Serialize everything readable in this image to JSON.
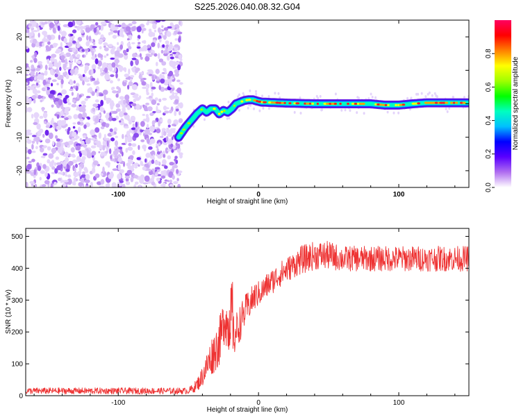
{
  "title": "S225.2026.040.08.32.G04",
  "chart_data": [
    {
      "type": "heatmap",
      "name": "spectrogram",
      "xlabel": "Height of straight line (km)",
      "ylabel": "Frequency (Hz)",
      "xlim": [
        -166,
        150
      ],
      "ylim": [
        -25,
        25
      ],
      "xticks": [
        -100,
        0,
        100
      ],
      "xtick_labels": [
        "-100",
        "0",
        "100"
      ],
      "yticks": [
        -20,
        -10,
        0,
        10,
        20
      ],
      "ytick_labels": [
        "-20",
        "-10",
        "0",
        "10",
        "20"
      ],
      "noise_region_x": [
        -166,
        -55
      ],
      "signal_track": {
        "x": [
          -57,
          -52,
          -48,
          -44,
          -40,
          -37,
          -34,
          -31,
          -28,
          -25,
          -22,
          -19,
          -16,
          -13,
          -10,
          -7,
          -4,
          -1,
          2,
          20,
          40,
          60,
          80,
          90,
          100,
          110,
          120,
          150
        ],
        "y": [
          -10,
          -7,
          -5,
          -3,
          -1.5,
          -2.5,
          -1.5,
          -1.5,
          -3,
          -2,
          -2.5,
          -1.5,
          0,
          0.5,
          1,
          1.2,
          1.2,
          0.8,
          0.5,
          0.2,
          0,
          0,
          0,
          -0.4,
          -0.4,
          0,
          0.3,
          0.3
        ]
      },
      "colorbar": {
        "label": "Normalized spectral amplitude",
        "range": [
          0,
          1
        ],
        "ticks": [
          0,
          0.2,
          0.4,
          0.6,
          0.8
        ],
        "tick_labels": [
          "0.0",
          "0.2",
          "0.4",
          "0.6",
          "0.8"
        ],
        "colors": [
          "#ffffff",
          "#b06ef0",
          "#5a00ff",
          "#0000ff",
          "#00c0ff",
          "#00ffc0",
          "#00ff00",
          "#a0ff00",
          "#ffff00",
          "#ff8000",
          "#ff0000",
          "#ff0060"
        ]
      }
    },
    {
      "type": "line",
      "name": "snr",
      "xlabel": "Height of straight line (km)",
      "ylabel": "SNR (10 * v/v)",
      "xlim": [
        -166,
        150
      ],
      "ylim": [
        0,
        525
      ],
      "xticks": [
        -100,
        0,
        100
      ],
      "xtick_labels": [
        "-100",
        "0",
        "100"
      ],
      "yticks": [
        0,
        100,
        200,
        300,
        400,
        500
      ],
      "ytick_labels": [
        "0",
        "100",
        "200",
        "300",
        "400",
        "500"
      ],
      "series": [
        {
          "name": "SNR",
          "color": "#ee3333",
          "envelope_x": [
            -166,
            -50,
            -46,
            -42,
            -38,
            -34,
            -30,
            -27,
            -24,
            -21,
            -18,
            -15,
            -12,
            -9,
            -6,
            -3,
            0,
            3,
            6,
            10,
            15,
            20,
            25,
            30,
            40,
            50,
            60,
            80,
            100,
            120,
            150
          ],
          "envelope_mean": [
            15,
            15,
            25,
            45,
            80,
            120,
            150,
            180,
            250,
            200,
            180,
            210,
            240,
            270,
            290,
            310,
            320,
            330,
            345,
            360,
            380,
            395,
            410,
            425,
            440,
            440,
            430,
            430,
            430,
            430,
            430
          ],
          "noise_amplitude": [
            10,
            10,
            15,
            25,
            40,
            60,
            70,
            80,
            80,
            80,
            70,
            60,
            55,
            50,
            45,
            45,
            40,
            40,
            40,
            40,
            40,
            40,
            40,
            45,
            45,
            45,
            40,
            40,
            40,
            40,
            40
          ]
        }
      ]
    }
  ]
}
